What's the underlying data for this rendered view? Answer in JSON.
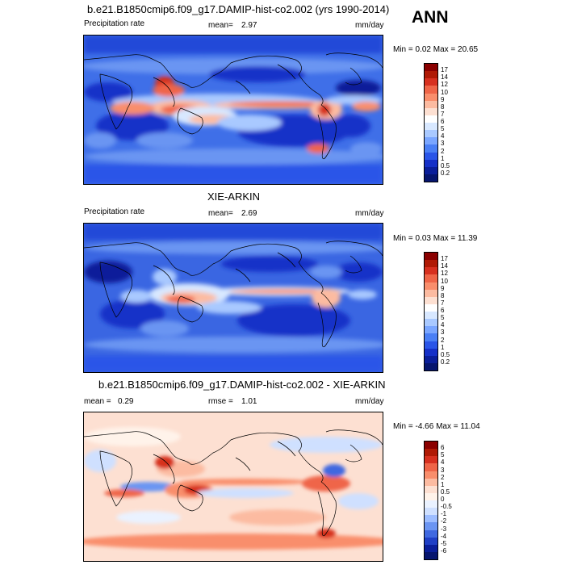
{
  "ann_label": "ANN",
  "panels": [
    {
      "title": "b.e21.B1850cmip6.f09_g17.DAMIP-hist-co2.002 (yrs 1990-2014)",
      "left_label": "Precipitation rate",
      "mean_label": "mean=",
      "mean_value": "2.97",
      "units": "mm/day",
      "minmax": "Min =  0.02 Max =  20.65",
      "levels": [
        "17",
        "14",
        "12",
        "10",
        "9",
        "8",
        "7",
        "6",
        "5",
        "4",
        "3",
        "2",
        "1",
        "0.5",
        "0.2"
      ],
      "colors": [
        "#8b0000",
        "#b01a05",
        "#d7301f",
        "#ef6548",
        "#f98e6c",
        "#fcbba1",
        "#fde0d2",
        "#ffffff",
        "#d8e8ff",
        "#a9c9ff",
        "#7aa6ff",
        "#4a7ff5",
        "#2a55e8",
        "#1530c8",
        "#0a1e9a",
        "#06156e"
      ]
    },
    {
      "title": "XIE-ARKIN",
      "left_label": "Precipitation rate",
      "mean_label": "mean=",
      "mean_value": "2.69",
      "units": "mm/day",
      "minmax": "Min =  0.03 Max =  11.39",
      "levels": [
        "17",
        "14",
        "12",
        "10",
        "9",
        "8",
        "7",
        "6",
        "5",
        "4",
        "3",
        "2",
        "1",
        "0.5",
        "0.2"
      ],
      "colors": [
        "#8b0000",
        "#b01a05",
        "#d7301f",
        "#ef6548",
        "#f98e6c",
        "#fcbba1",
        "#fde0d2",
        "#ffffff",
        "#d8e8ff",
        "#a9c9ff",
        "#7aa6ff",
        "#4a7ff5",
        "#2a55e8",
        "#1530c8",
        "#0a1e9a",
        "#06156e"
      ]
    },
    {
      "title": "b.e21.B1850cmip6.f09_g17.DAMIP-hist-co2.002 - XIE-ARKIN",
      "left_label": "",
      "mean_label": "mean =",
      "mean_value": "0.29",
      "rmse_label": "rmse =",
      "rmse_value": "1.01",
      "units": "mm/day",
      "minmax": "Min =  -4.66 Max =  11.04",
      "levels": [
        "6",
        "5",
        "4",
        "3",
        "2",
        "1",
        "0.5",
        "0",
        "-0.5",
        "-1",
        "-2",
        "-3",
        "-4",
        "-5",
        "-6"
      ],
      "colors": [
        "#8b0000",
        "#b01a05",
        "#d7301f",
        "#ef6548",
        "#f98e6c",
        "#fcbba1",
        "#fde0d2",
        "#fff3ea",
        "#eaf2ff",
        "#cfe0ff",
        "#9dbdff",
        "#6b95f2",
        "#3f68e0",
        "#1f3fc6",
        "#0a1e9a",
        "#06156e"
      ]
    }
  ]
}
